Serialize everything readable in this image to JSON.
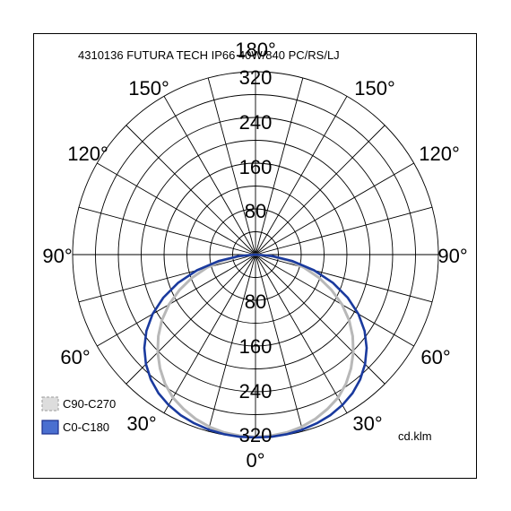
{
  "chart_data": {
    "type": "polar",
    "title": "4310136 FUTURA TECH IP66 40W/840 PC/RS/LJ",
    "unit_label": "cd.klm",
    "radial_max": 320,
    "radial_ticks": [
      80,
      160,
      240,
      320
    ],
    "radial_step": 40,
    "angle_labels": {
      "top": "180°",
      "bottom": "0°",
      "left_150": "150°",
      "right_150": "150°",
      "left_120": "120°",
      "right_120": "120°",
      "left_90": "90°",
      "right_90": "90°",
      "left_60": "60°",
      "right_60": "60°",
      "left_30": "30°",
      "right_30": "30°"
    },
    "series": [
      {
        "name": "C90-C270",
        "color": "#b8b8b8",
        "angles": [
          0,
          5,
          10,
          15,
          20,
          25,
          30,
          35,
          40,
          45,
          50,
          55,
          60,
          65,
          70,
          75,
          80,
          85,
          90
        ],
        "values": [
          319,
          318,
          316,
          312,
          306,
          298,
          289,
          276,
          260,
          242,
          222,
          200,
          175,
          147,
          118,
          88,
          57,
          27,
          0
        ]
      },
      {
        "name": "C0-C180",
        "color": "#1a3a9e",
        "angles": [
          0,
          5,
          10,
          15,
          20,
          25,
          30,
          35,
          40,
          45,
          50,
          55,
          60,
          65,
          70,
          75,
          80,
          85,
          90
        ],
        "values": [
          320,
          320,
          319,
          317,
          314,
          310,
          304,
          296,
          285,
          271,
          254,
          233,
          208,
          178,
          144,
          106,
          66,
          30,
          0
        ]
      }
    ]
  }
}
